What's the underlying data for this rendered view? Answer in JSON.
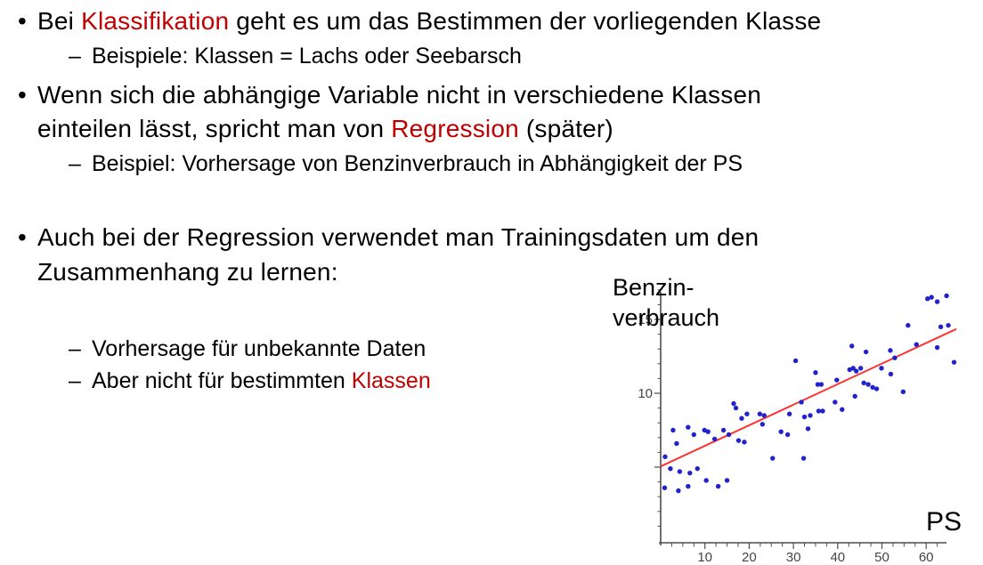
{
  "content": {
    "bullet_char": "•",
    "dash_char": "–",
    "b1_pre": "Bei ",
    "b1_red": "Klassifikation",
    "b1_post": " geht es um das Bestimmen der vorliegenden Klasse",
    "b1_sub": "Beispiele: Klassen = Lachs oder Seebarsch",
    "b2_line1": "Wenn sich die abhängige Variable nicht in verschiedene Klassen",
    "b2_line2_pre": "einteilen lässt, spricht man von ",
    "b2_line2_red": "Regression",
    "b2_line2_post": " (später)",
    "b2_sub": "Beispiel: Vorhersage von Benzinverbrauch in Abhängigkeit der PS",
    "b3_line1": "Auch bei der Regression verwendet man Trainingsdaten um den",
    "b3_line2": "Zusammenhang zu lernen:",
    "b3_sub1": "Vorhersage für unbekannte Daten",
    "b3_sub2_pre": "Aber nicht für bestimmten ",
    "b3_sub2_red": "Klassen"
  },
  "colors": {
    "accent_red": "#c00000",
    "dot_blue": "#2222cc",
    "regression_red": "#ff3232",
    "axis_gray": "#4d4d4d",
    "tick_label_gray": "#444444"
  },
  "chart_data": {
    "type": "scatter",
    "title": "",
    "xlabel": "PS",
    "ylabel_line1": "Benzin-",
    "ylabel_line2": "verbrauch",
    "xlim": [
      0,
      63.5
    ],
    "ylim": [
      0,
      17.3
    ],
    "x_ticks": [
      10,
      20,
      30,
      40,
      50,
      60
    ],
    "y_tick_labels": [
      10,
      15
    ],
    "y_major_ticks": [
      5,
      10,
      15
    ],
    "x_minor_step": 2.5,
    "y_minor_step": 1,
    "grid": false,
    "legend": false,
    "point_color": "#2222cc",
    "line_color": "#ff3232",
    "regression_line": {
      "x1": 0,
      "y1": 5.05,
      "x2": 66.8,
      "y2": 14.35
    },
    "points": [
      [
        0.9,
        3.6
      ],
      [
        1.0,
        5.7
      ],
      [
        2.2,
        4.9
      ],
      [
        2.8,
        7.5
      ],
      [
        3.6,
        6.6
      ],
      [
        4.0,
        3.4
      ],
      [
        4.3,
        4.7
      ],
      [
        6.2,
        7.7
      ],
      [
        6.2,
        3.7
      ],
      [
        6.6,
        4.6
      ],
      [
        7.5,
        7.2
      ],
      [
        8.3,
        4.9
      ],
      [
        9.9,
        7.5
      ],
      [
        10.3,
        4.1
      ],
      [
        10.7,
        7.4
      ],
      [
        12.2,
        6.9
      ],
      [
        13.0,
        3.7
      ],
      [
        14.2,
        7.5
      ],
      [
        15.0,
        4.1
      ],
      [
        15.4,
        7.2
      ],
      [
        16.5,
        9.3
      ],
      [
        17.0,
        9.0
      ],
      [
        17.6,
        6.8
      ],
      [
        18.3,
        8.3
      ],
      [
        18.9,
        6.7
      ],
      [
        19.5,
        8.6
      ],
      [
        22.4,
        8.6
      ],
      [
        23.0,
        7.9
      ],
      [
        23.4,
        8.5
      ],
      [
        25.3,
        5.6
      ],
      [
        27.2,
        7.4
      ],
      [
        28.7,
        7.2
      ],
      [
        29.1,
        8.6
      ],
      [
        30.5,
        12.2
      ],
      [
        31.8,
        9.4
      ],
      [
        32.3,
        5.6
      ],
      [
        32.5,
        8.4
      ],
      [
        33.3,
        7.6
      ],
      [
        33.8,
        8.5
      ],
      [
        35.0,
        11.4
      ],
      [
        35.5,
        10.6
      ],
      [
        35.7,
        8.8
      ],
      [
        36.3,
        10.6
      ],
      [
        36.6,
        8.8
      ],
      [
        39.4,
        9.4
      ],
      [
        39.8,
        10.9
      ],
      [
        41.0,
        8.9
      ],
      [
        42.7,
        11.6
      ],
      [
        43.2,
        13.2
      ],
      [
        43.5,
        11.7
      ],
      [
        43.9,
        9.8
      ],
      [
        44.2,
        11.5
      ],
      [
        45.2,
        11.7
      ],
      [
        45.9,
        10.7
      ],
      [
        46.4,
        12.8
      ],
      [
        46.9,
        10.6
      ],
      [
        47.9,
        10.4
      ],
      [
        48.8,
        10.3
      ],
      [
        49.9,
        11.7
      ],
      [
        51.9,
        12.9
      ],
      [
        52.0,
        11.3
      ],
      [
        52.9,
        12.4
      ],
      [
        54.8,
        10.1
      ],
      [
        55.9,
        14.6
      ],
      [
        57.8,
        13.3
      ],
      [
        60.3,
        16.4
      ],
      [
        61.2,
        16.5
      ],
      [
        62.5,
        16.2
      ],
      [
        62.5,
        13.1
      ],
      [
        63.3,
        14.5
      ],
      [
        64.6,
        16.6
      ],
      [
        65.0,
        14.6
      ],
      [
        66.3,
        12.1
      ]
    ]
  }
}
